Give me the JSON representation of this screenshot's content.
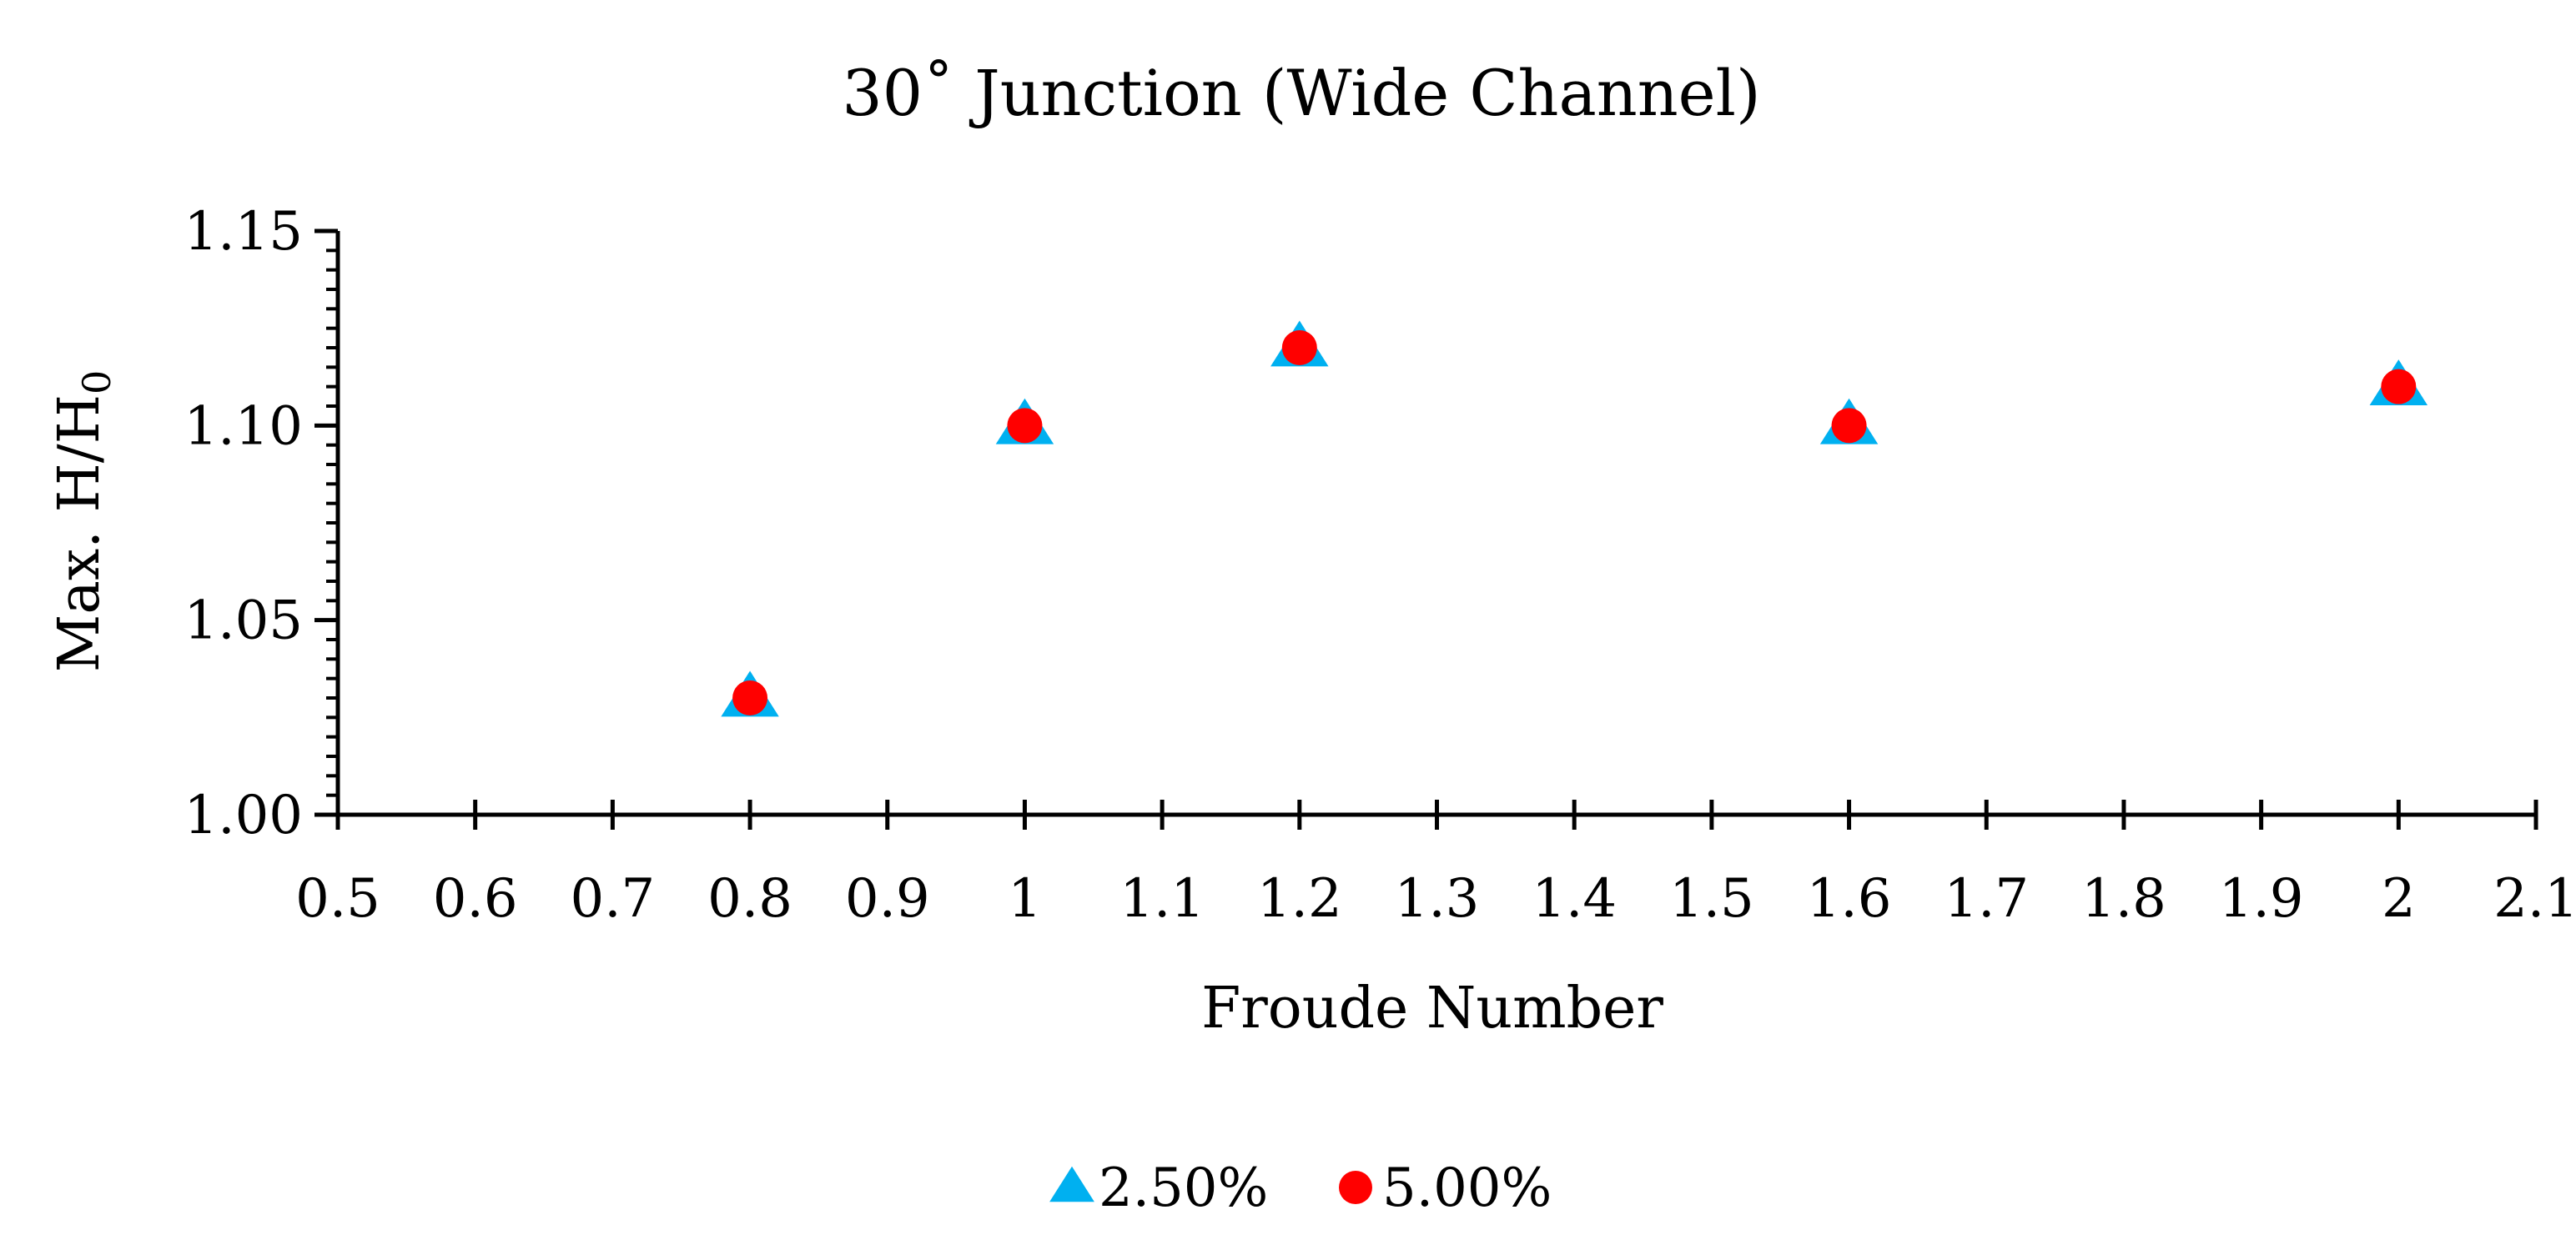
{
  "chart_data": {
    "type": "scatter",
    "title": "30˚ Junction (Wide Channel)",
    "xlabel": "Froude Number",
    "ylabel_main": "Max. H/H",
    "ylabel_sub": "0",
    "xlim": [
      0.5,
      2.1
    ],
    "ylim": [
      1.0,
      1.15
    ],
    "x_ticks": [
      "0.5",
      "0.6",
      "0.7",
      "0.8",
      "0.9",
      "1",
      "1.1",
      "1.2",
      "1.3",
      "1.4",
      "1.5",
      "1.6",
      "1.7",
      "1.8",
      "1.9",
      "2",
      "2.1"
    ],
    "y_ticks": [
      "1.00",
      "1.05",
      "1.10",
      "1.15"
    ],
    "grid": false,
    "legend_position": "bottom",
    "series": [
      {
        "name": "2.50%",
        "marker": "triangle",
        "color": "#00B0F0",
        "points": [
          {
            "x": 0.8,
            "y": 1.03
          },
          {
            "x": 1.0,
            "y": 1.1
          },
          {
            "x": 1.2,
            "y": 1.12
          },
          {
            "x": 1.6,
            "y": 1.1
          },
          {
            "x": 2.0,
            "y": 1.11
          }
        ]
      },
      {
        "name": "5.00%",
        "marker": "circle",
        "color": "#FF0000",
        "points": [
          {
            "x": 0.8,
            "y": 1.03
          },
          {
            "x": 1.0,
            "y": 1.1
          },
          {
            "x": 1.2,
            "y": 1.12
          },
          {
            "x": 1.6,
            "y": 1.1
          },
          {
            "x": 2.0,
            "y": 1.11
          }
        ]
      }
    ]
  }
}
